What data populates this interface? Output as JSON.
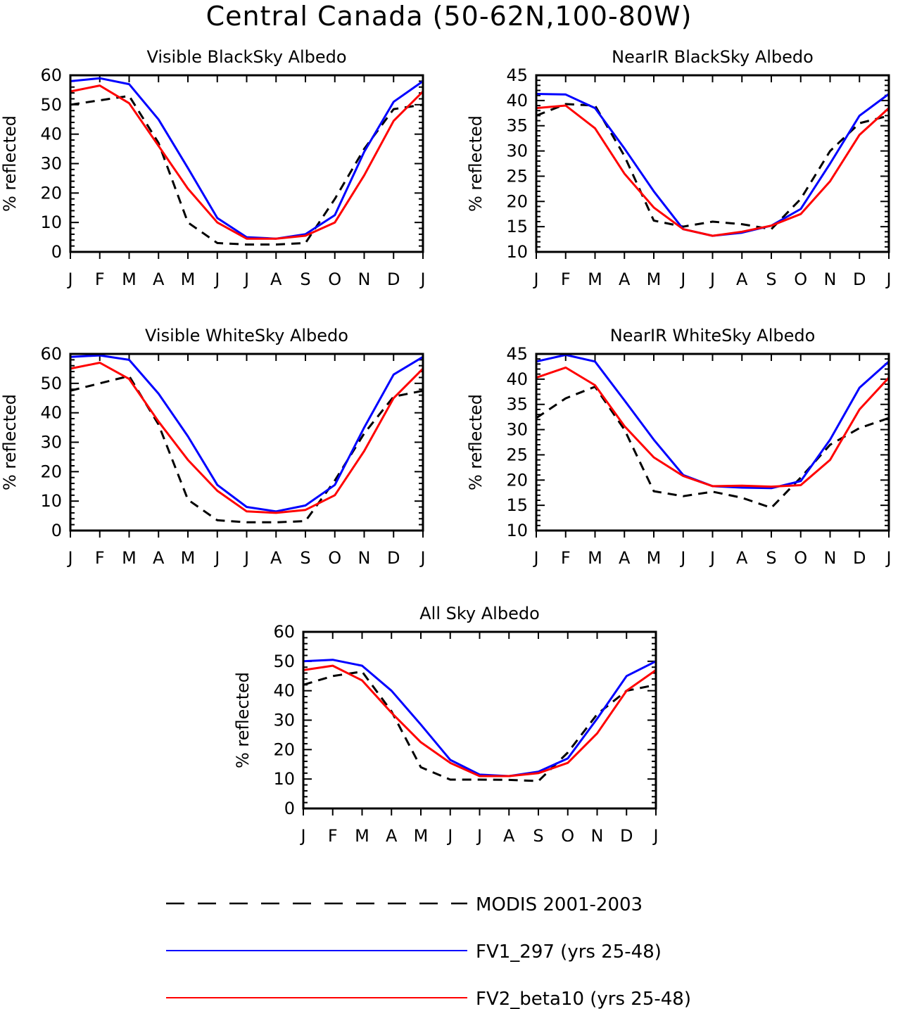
{
  "title": "Central Canada (50-62N,100-80W)",
  "colors": {
    "modis": "#000000",
    "fv1": "#0000ff",
    "fv2": "#ff0000"
  },
  "legend": {
    "entries": [
      {
        "key": "modis",
        "label": "MODIS 2001-2003",
        "style": "dashed"
      },
      {
        "key": "fv1",
        "label": "FV1_297 (yrs 25-48)",
        "style": "solid"
      },
      {
        "key": "fv2",
        "label": "FV2_beta10 (yrs 25-48)",
        "style": "solid"
      }
    ]
  },
  "chart_data": [
    {
      "type": "line",
      "title": "Visible BlackSky Albedo",
      "xlabel": "",
      "ylabel": "% reflected",
      "categories": [
        "J",
        "F",
        "M",
        "A",
        "M",
        "J",
        "J",
        "A",
        "S",
        "O",
        "N",
        "D",
        "J"
      ],
      "ylim": [
        0,
        60
      ],
      "yticks": [
        0,
        10,
        20,
        30,
        40,
        50,
        60
      ],
      "series": [
        {
          "name": "MODIS 2001-2003",
          "key": "modis",
          "values": [
            50,
            51.5,
            53,
            37,
            10,
            3,
            2.5,
            2.5,
            3,
            18,
            35,
            48.5,
            50
          ]
        },
        {
          "name": "FV1_297 (yrs 25-48)",
          "key": "fv1",
          "values": [
            58,
            59,
            57,
            45,
            28.5,
            11.5,
            5,
            4.5,
            6,
            12.5,
            34,
            51,
            58
          ]
        },
        {
          "name": "FV2_beta10 (yrs 25-48)",
          "key": "fv2",
          "values": [
            54.5,
            56.5,
            50.5,
            36,
            21.5,
            10,
            4.5,
            4.5,
            5.5,
            10,
            26,
            44.5,
            54.5
          ]
        }
      ]
    },
    {
      "type": "line",
      "title": "NearIR BlackSky Albedo",
      "xlabel": "",
      "ylabel": "% reflected",
      "categories": [
        "J",
        "F",
        "M",
        "A",
        "M",
        "J",
        "J",
        "A",
        "S",
        "O",
        "N",
        "D",
        "J"
      ],
      "ylim": [
        10,
        45
      ],
      "yticks": [
        10,
        15,
        20,
        25,
        30,
        35,
        40,
        45
      ],
      "series": [
        {
          "name": "MODIS 2001-2003",
          "key": "modis",
          "values": [
            37,
            39.3,
            39,
            29,
            16.2,
            15,
            16,
            15.5,
            14.5,
            20.5,
            30,
            35.5,
            37
          ]
        },
        {
          "name": "FV1_297 (yrs 25-48)",
          "key": "fv1",
          "values": [
            41.3,
            41.2,
            38.5,
            30.5,
            22,
            14.5,
            13.2,
            13.8,
            15.2,
            18.5,
            27.5,
            37,
            41.3
          ]
        },
        {
          "name": "FV2_beta10 (yrs 25-48)",
          "key": "fv2",
          "values": [
            38.5,
            39,
            34.5,
            25.5,
            18.8,
            14.5,
            13.2,
            14,
            15.2,
            17.5,
            24,
            33.2,
            38.5
          ]
        }
      ]
    },
    {
      "type": "line",
      "title": "Visible WhiteSky Albedo",
      "xlabel": "",
      "ylabel": "% reflected",
      "categories": [
        "J",
        "F",
        "M",
        "A",
        "M",
        "J",
        "J",
        "A",
        "S",
        "O",
        "N",
        "D",
        "J"
      ],
      "ylim": [
        0,
        60
      ],
      "yticks": [
        0,
        10,
        20,
        30,
        40,
        50,
        60
      ],
      "series": [
        {
          "name": "MODIS 2001-2003",
          "key": "modis",
          "values": [
            47.5,
            50,
            52.5,
            36,
            10.5,
            3.5,
            2.8,
            2.8,
            3.2,
            17,
            33,
            45.5,
            47.5
          ]
        },
        {
          "name": "FV1_297 (yrs 25-48)",
          "key": "fv1",
          "values": [
            59,
            59.5,
            58,
            46.5,
            32,
            15.5,
            8,
            6.5,
            8.5,
            15.5,
            35,
            53,
            59
          ]
        },
        {
          "name": "FV2_beta10 (yrs 25-48)",
          "key": "fv2",
          "values": [
            55,
            57,
            51.5,
            37,
            24,
            13.5,
            6.5,
            6,
            7,
            12,
            27,
            45,
            55
          ]
        }
      ]
    },
    {
      "type": "line",
      "title": "NearIR WhiteSky Albedo",
      "xlabel": "",
      "ylabel": "% reflected",
      "categories": [
        "J",
        "F",
        "M",
        "A",
        "M",
        "J",
        "J",
        "A",
        "S",
        "O",
        "N",
        "D",
        "J"
      ],
      "ylim": [
        10,
        45
      ],
      "yticks": [
        10,
        15,
        20,
        25,
        30,
        35,
        40,
        45
      ],
      "series": [
        {
          "name": "MODIS 2001-2003",
          "key": "modis",
          "values": [
            32.3,
            36.2,
            38.5,
            30,
            17.8,
            16.8,
            17.7,
            16.5,
            14.5,
            20.5,
            27,
            30.3,
            32.3
          ]
        },
        {
          "name": "FV1_297 (yrs 25-48)",
          "key": "fv1",
          "values": [
            43.5,
            44.8,
            43.5,
            35.8,
            28,
            21,
            18.8,
            18.5,
            18.4,
            19.8,
            28,
            38.3,
            43.5
          ]
        },
        {
          "name": "FV2_beta10 (yrs 25-48)",
          "key": "fv2",
          "values": [
            40.3,
            42.3,
            38.8,
            30.7,
            24.5,
            20.8,
            18.8,
            18.9,
            18.7,
            19,
            24,
            34,
            40.3
          ]
        }
      ]
    },
    {
      "type": "line",
      "title": "All Sky Albedo",
      "xlabel": "",
      "ylabel": "% reflected",
      "categories": [
        "J",
        "F",
        "M",
        "A",
        "M",
        "J",
        "J",
        "A",
        "S",
        "O",
        "N",
        "D",
        "J"
      ],
      "ylim": [
        0,
        60
      ],
      "yticks": [
        0,
        10,
        20,
        30,
        40,
        50,
        60
      ],
      "series": [
        {
          "name": "MODIS 2001-2003",
          "key": "modis",
          "values": [
            42,
            45,
            46.5,
            33,
            14,
            9.8,
            9.8,
            9.7,
            9.3,
            19,
            32,
            40,
            42
          ]
        },
        {
          "name": "FV1_297 (yrs 25-48)",
          "key": "fv1",
          "values": [
            50,
            50.5,
            48.5,
            40,
            28.5,
            16.5,
            11.5,
            11,
            12.5,
            17,
            30.5,
            45,
            50
          ]
        },
        {
          "name": "FV2_beta10 (yrs 25-48)",
          "key": "fv2",
          "values": [
            47,
            48.5,
            43.5,
            32.5,
            22.5,
            15.5,
            11,
            11,
            12,
            15.5,
            25.5,
            40,
            47
          ]
        }
      ]
    }
  ]
}
